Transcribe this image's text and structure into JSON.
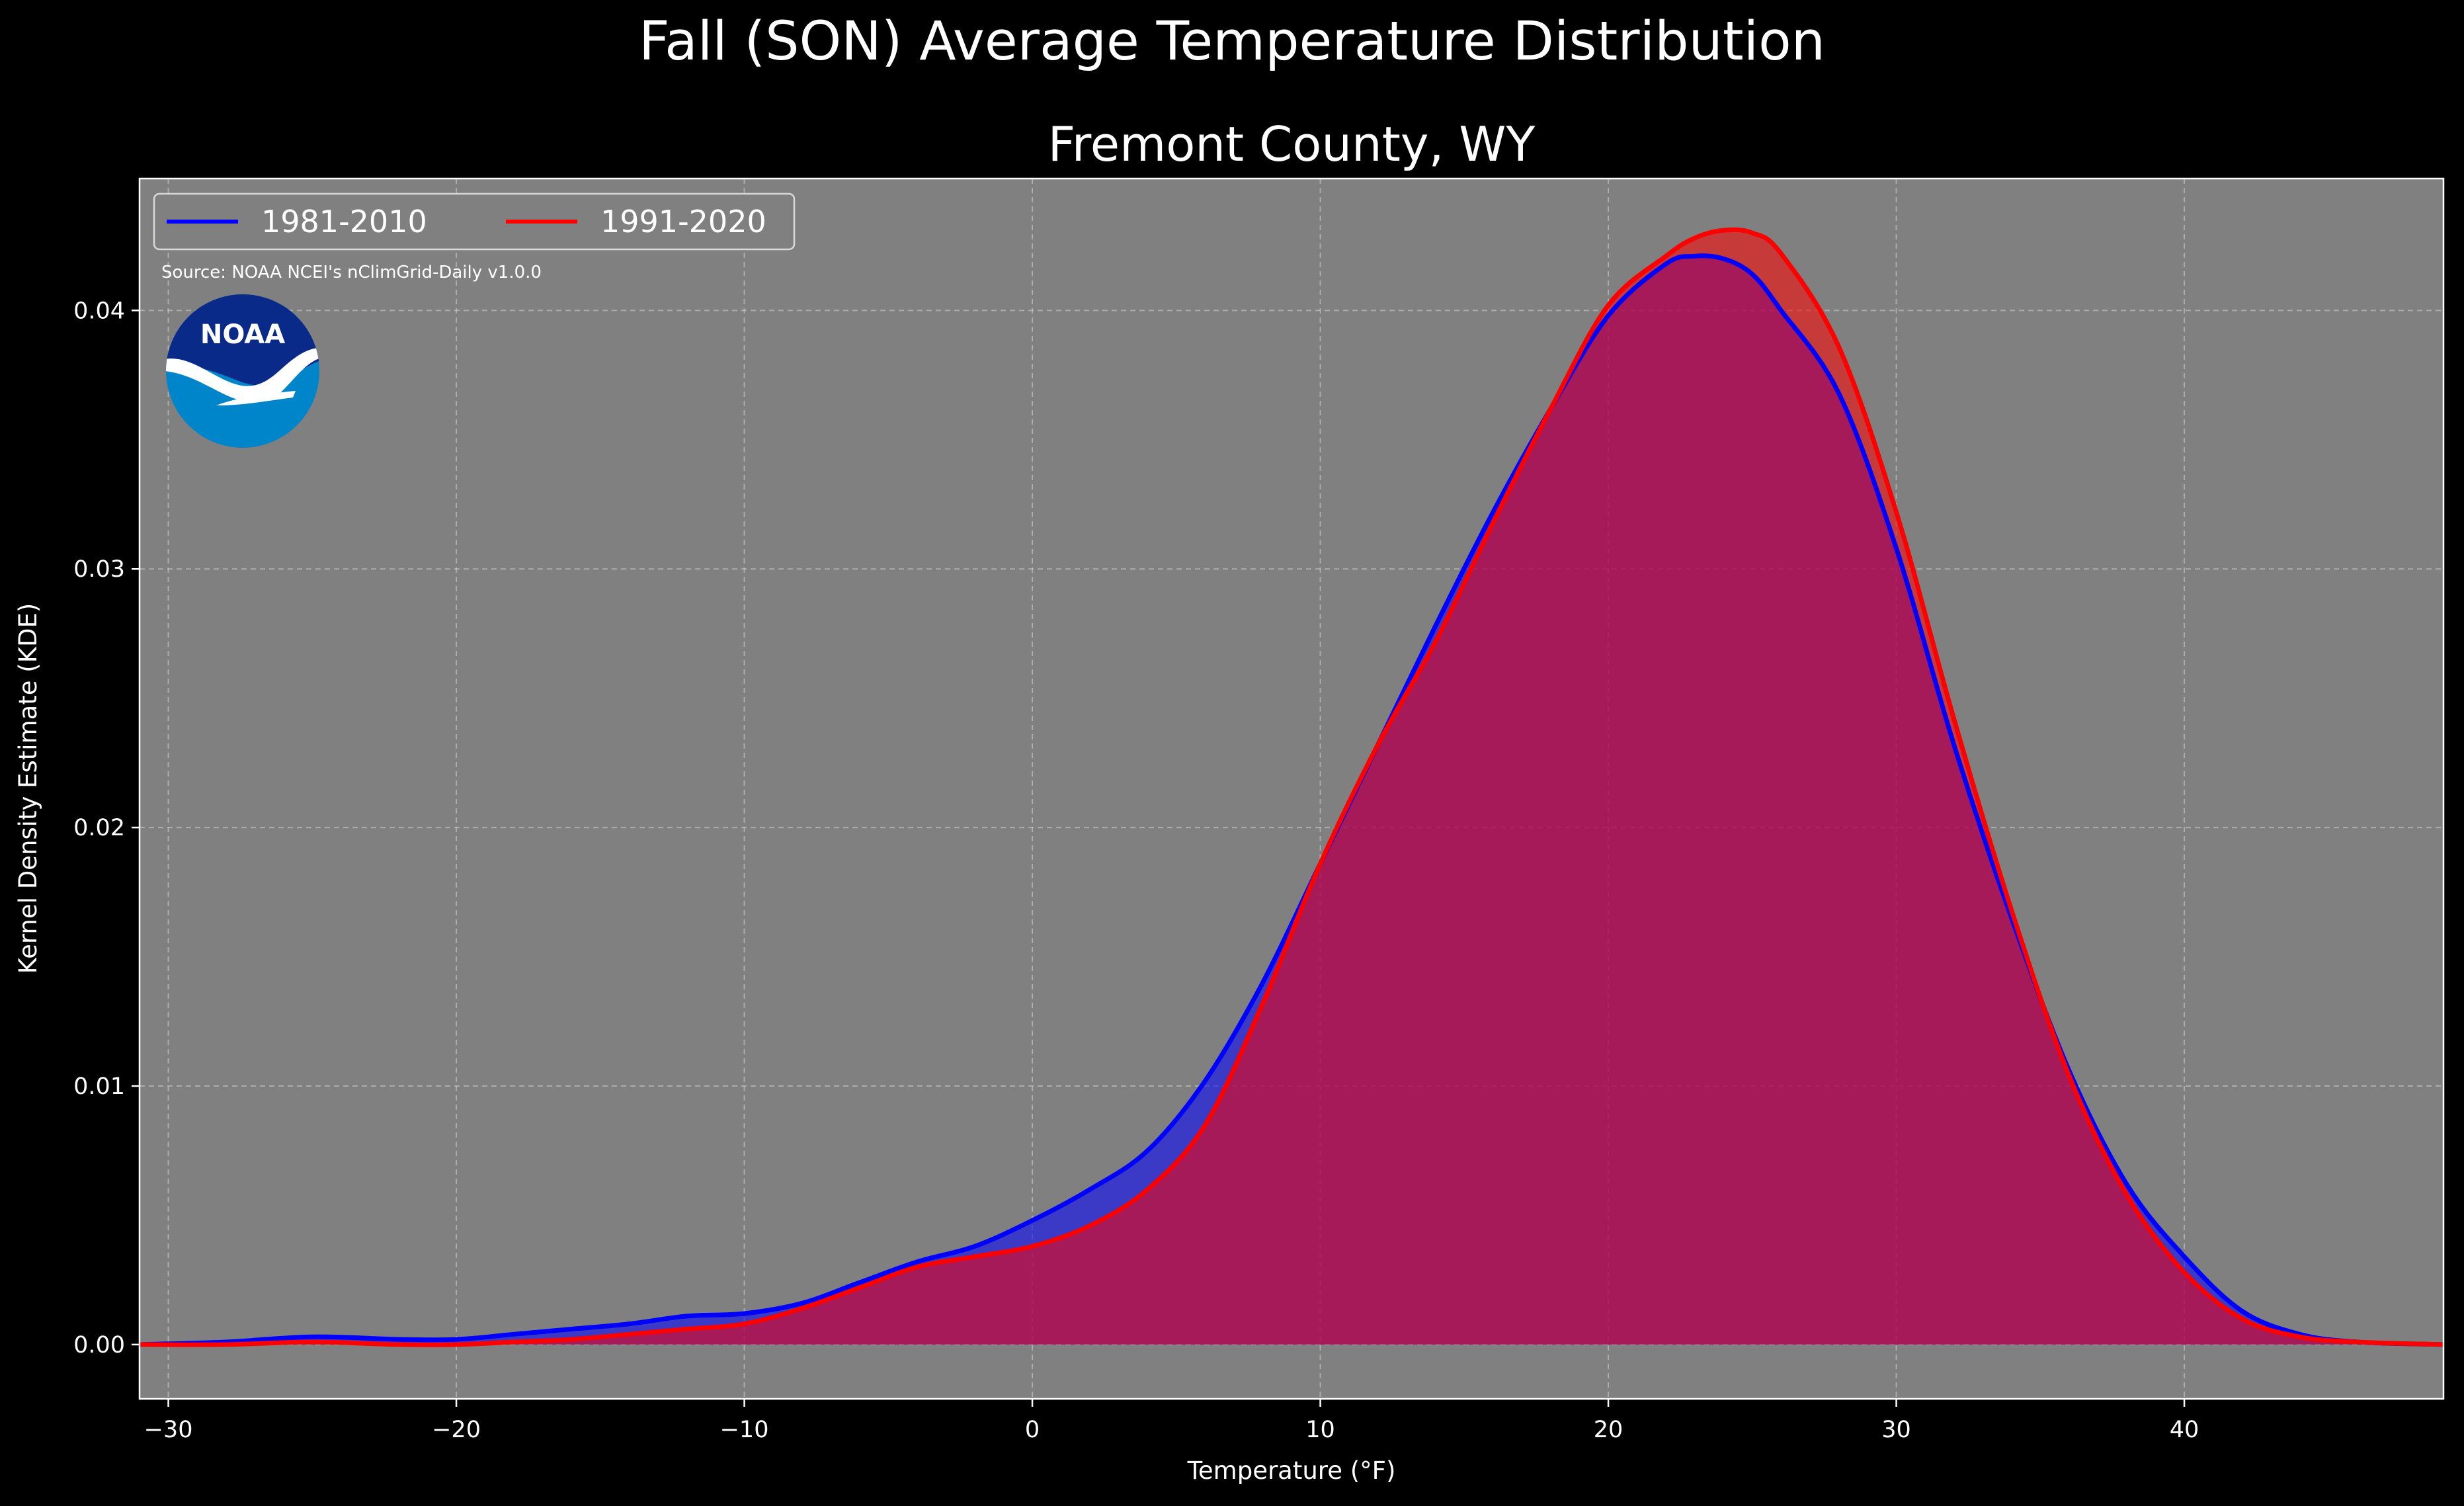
{
  "colors": {
    "background": "#000000",
    "plot_bg": "#808080",
    "series_1981": "#0000ff",
    "series_1991": "#ff0000",
    "overlap": "#9e1e5e",
    "noaa_dark": "#0a2a8a",
    "noaa_light": "#0085ca"
  },
  "logo": {
    "icon": "noaa-logo-icon",
    "text": "NOAA"
  },
  "source_note": "Source: NOAA NCEI's nClimGrid-Daily v1.0.0",
  "chart_data": {
    "type": "area",
    "title": "Fall (SON) Average Temperature Distribution",
    "subtitle": "Fremont County, WY",
    "xlabel": "Temperature (°F)",
    "ylabel": "Kernel Density Estimate (KDE)",
    "xlim": [
      -31,
      49
    ],
    "ylim": [
      -0.0021,
      0.0451
    ],
    "xticks": [
      -30,
      -20,
      -10,
      0,
      10,
      20,
      30,
      40
    ],
    "xtick_labels": [
      "−30",
      "−20",
      "−10",
      "0",
      "10",
      "20",
      "30",
      "40"
    ],
    "yticks": [
      0.0,
      0.01,
      0.02,
      0.03,
      0.04
    ],
    "ytick_labels": [
      "0.00",
      "0.01",
      "0.02",
      "0.03",
      "0.04"
    ],
    "grid": true,
    "legend": "top-left",
    "x": [
      -31,
      -28,
      -25,
      -22,
      -20,
      -18,
      -16,
      -14,
      -12,
      -10,
      -8,
      -6,
      -4,
      -2,
      0,
      2,
      4,
      6,
      8,
      10,
      12,
      14,
      16,
      18,
      20,
      22,
      23,
      24,
      25,
      26,
      28,
      30,
      32,
      34,
      36,
      38,
      40,
      42,
      44,
      46,
      49
    ],
    "series": [
      {
        "name": "1981-2010",
        "values": [
          0.0,
          0.0001,
          0.0003,
          0.0002,
          0.0002,
          0.0004,
          0.0006,
          0.0008,
          0.0011,
          0.0012,
          0.0016,
          0.0024,
          0.0032,
          0.0038,
          0.0048,
          0.006,
          0.0075,
          0.0102,
          0.014,
          0.0186,
          0.0232,
          0.0278,
          0.0322,
          0.0362,
          0.0398,
          0.0418,
          0.0421,
          0.042,
          0.0414,
          0.04,
          0.0368,
          0.0308,
          0.0232,
          0.0165,
          0.0106,
          0.0062,
          0.0034,
          0.0013,
          0.0004,
          0.0001,
          0.0
        ]
      },
      {
        "name": "1991-2020",
        "values": [
          0.0,
          0.0,
          0.0001,
          0.0,
          0.0,
          0.0001,
          0.0002,
          0.0004,
          0.0006,
          0.0008,
          0.0014,
          0.0022,
          0.003,
          0.0034,
          0.0038,
          0.0046,
          0.006,
          0.0085,
          0.0132,
          0.0186,
          0.0232,
          0.0272,
          0.0318,
          0.0362,
          0.0402,
          0.0421,
          0.0428,
          0.0431,
          0.043,
          0.0422,
          0.0386,
          0.0322,
          0.0242,
          0.0168,
          0.0104,
          0.0058,
          0.0028,
          0.001,
          0.0003,
          0.0001,
          0.0
        ]
      }
    ]
  }
}
